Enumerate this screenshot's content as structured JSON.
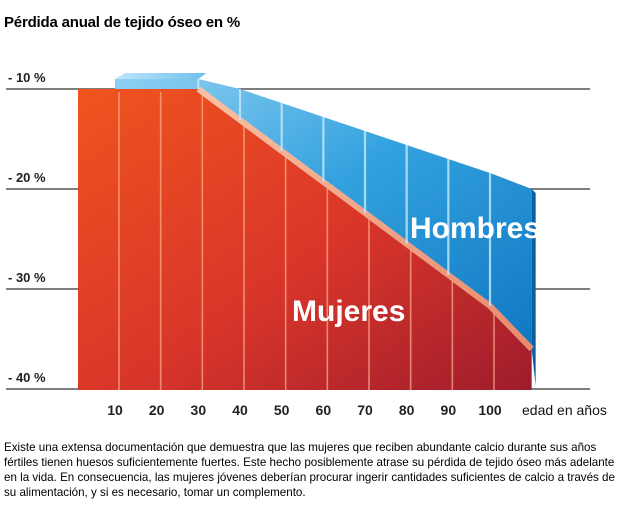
{
  "page": {
    "title": "Pérdida anual de tejido óseo en %",
    "caption": "Existe una extensa documentación que demuestra que las mujeres que reciben abundante calcio durante sus años fértiles tienen huesos suficientemente fuertes. Este hecho posiblemente atrase su pérdida de tejido óseo más adelante en la vida. En consecuencia, las mujeres jóvenes deberían procurar ingerir cantidades suficientes de calcio a través de su alimentación, y si es necesario, tomar un complemento."
  },
  "chart_data": {
    "type": "area",
    "title": "Pérdida anual de tejido óseo en %",
    "xlabel": "edad en años",
    "ylabel": "",
    "x": [
      10,
      20,
      30,
      40,
      50,
      60,
      70,
      80,
      90,
      100
    ],
    "x_tick_labels": [
      "10",
      "20",
      "30",
      "40",
      "50",
      "60",
      "70",
      "80",
      "90",
      "100"
    ],
    "y_tick_labels": [
      "- 10 %",
      "- 20 %",
      "- 30 %",
      "- 40 %"
    ],
    "y_ticks": [
      -10,
      -20,
      -30,
      -40
    ],
    "ylim": [
      -40,
      -10
    ],
    "grid": true,
    "series": [
      {
        "name": "Hombres",
        "color": "#1f8fd6",
        "points": [
          [
            10,
            -9
          ],
          [
            30,
            -9
          ],
          [
            40,
            -10
          ],
          [
            50,
            -11.4
          ],
          [
            60,
            -12.8
          ],
          [
            70,
            -14.2
          ],
          [
            80,
            -15.6
          ],
          [
            90,
            -17
          ],
          [
            100,
            -18.4
          ],
          [
            110,
            -20
          ]
        ]
      },
      {
        "name": "Mujeres",
        "color": "#e64a19",
        "points": [
          [
            10,
            -10
          ],
          [
            30,
            -10
          ],
          [
            40,
            -13.1
          ],
          [
            50,
            -16.2
          ],
          [
            60,
            -19.3
          ],
          [
            70,
            -22.4
          ],
          [
            80,
            -25.5
          ],
          [
            90,
            -28.6
          ],
          [
            100,
            -31.7
          ],
          [
            110,
            -36
          ]
        ]
      }
    ]
  }
}
